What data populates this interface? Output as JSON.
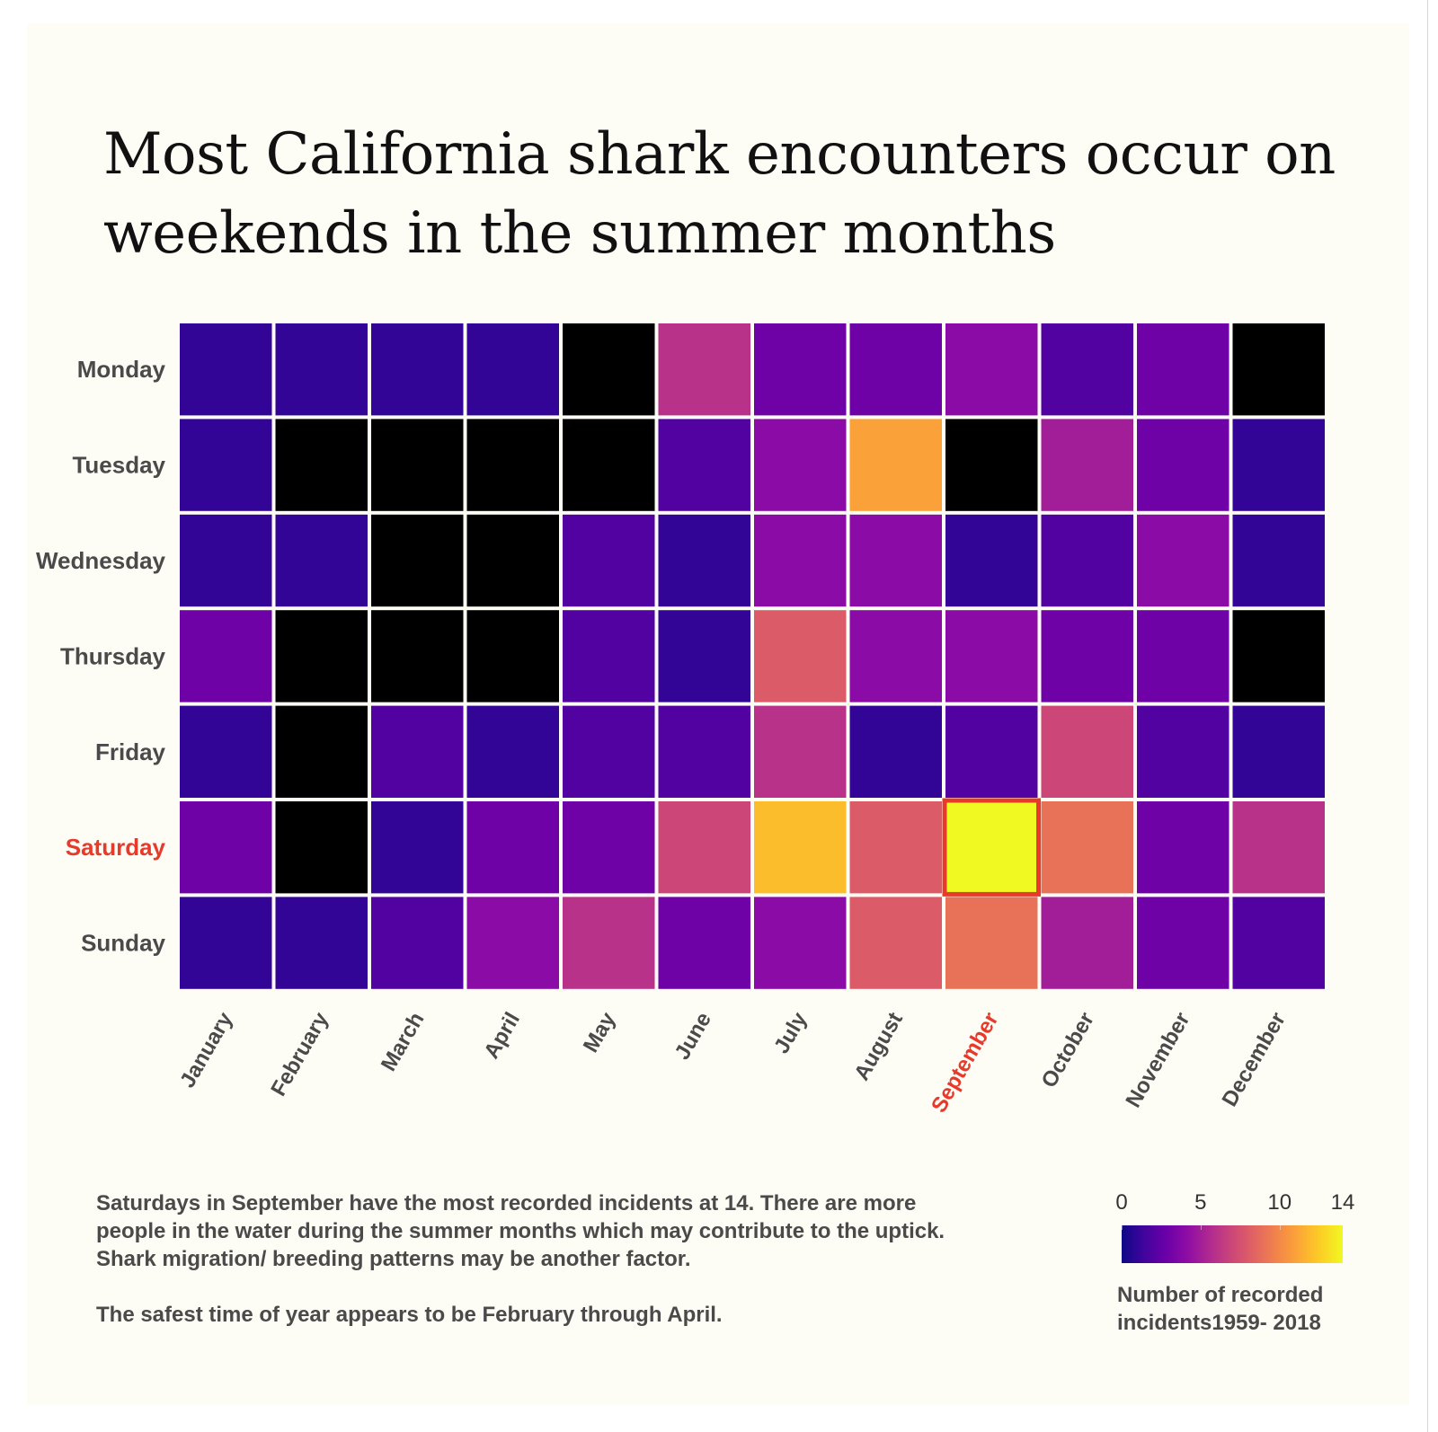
{
  "title": "Most California shark encounters occur on weekends in the summer months",
  "chart_data": {
    "type": "heatmap",
    "x_categories": [
      "January",
      "February",
      "March",
      "April",
      "May",
      "June",
      "July",
      "August",
      "September",
      "October",
      "November",
      "December"
    ],
    "y_categories": [
      "Monday",
      "Tuesday",
      "Wednesday",
      "Thursday",
      "Friday",
      "Saturday",
      "Sunday"
    ],
    "values": [
      [
        1,
        1,
        1,
        1,
        0,
        6,
        3,
        3,
        4,
        2,
        3,
        0
      ],
      [
        1,
        0,
        0,
        0,
        0,
        2,
        4,
        11,
        0,
        5,
        3,
        1
      ],
      [
        1,
        1,
        0,
        0,
        2,
        1,
        4,
        4,
        1,
        2,
        4,
        1
      ],
      [
        3,
        0,
        0,
        0,
        2,
        1,
        8,
        4,
        4,
        3,
        3,
        0
      ],
      [
        1,
        0,
        2,
        1,
        2,
        2,
        6,
        1,
        2,
        7,
        2,
        1
      ],
      [
        3,
        0,
        1,
        3,
        3,
        7,
        12,
        8,
        14,
        9,
        3,
        6
      ],
      [
        1,
        1,
        2,
        4,
        6,
        3,
        4,
        8,
        9,
        5,
        3,
        2
      ]
    ],
    "highlight": {
      "row": "Saturday",
      "column": "September",
      "value": 14
    },
    "colorscale": "plasma",
    "empty_color": "#000000",
    "zmin": 0,
    "zmax": 14,
    "legend": {
      "ticks": [
        "0",
        "5",
        "10",
        "14"
      ],
      "title_line1": "Number of recorded",
      "title_line2": "incidents1959- 2018",
      "placement": "bottom-right"
    },
    "highlight_color": "#e83a2b"
  },
  "annotation": {
    "p1": "Saturdays in September have the most recorded incidents at 14. There are more people in the water during the summer months which may contribute to the uptick. Shark migration/ breeding patterns may be another factor.",
    "p2": "The safest time of year appears to be February through April."
  }
}
